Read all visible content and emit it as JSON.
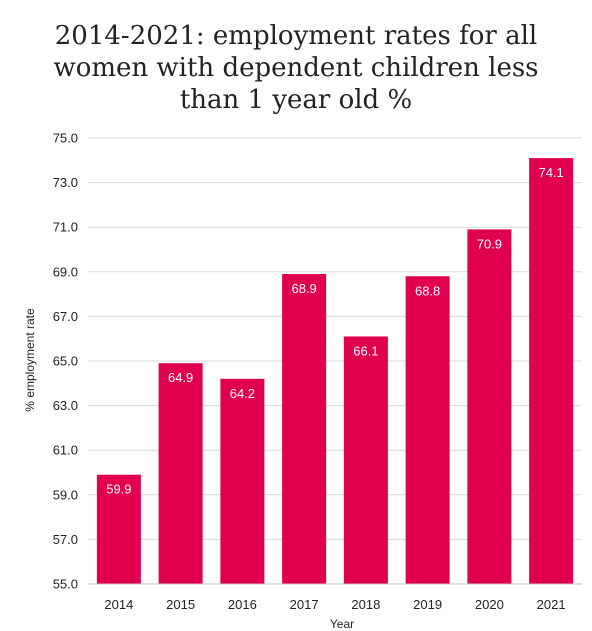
{
  "chart_data": {
    "type": "bar",
    "title": "2014-2021: employment rates for all\nwomen with dependent children less\nthan 1 year old %",
    "xlabel": "Year",
    "ylabel": "% employment rate",
    "categories": [
      "2014",
      "2015",
      "2016",
      "2017",
      "2018",
      "2019",
      "2020",
      "2021"
    ],
    "values": [
      59.9,
      64.9,
      64.2,
      68.9,
      66.1,
      68.8,
      70.9,
      74.1
    ],
    "value_labels": [
      "59.9",
      "64.9",
      "64.2",
      "68.9",
      "66.1",
      "68.8",
      "70.9",
      "74.1"
    ],
    "ylim": [
      55.0,
      75.0
    ],
    "yticks": [
      "55.0",
      "57.0",
      "59.0",
      "61.0",
      "63.0",
      "65.0",
      "67.0",
      "69.0",
      "71.0",
      "73.0",
      "75.0"
    ],
    "grid": true,
    "legend": "none",
    "bar_color": "#e0004d",
    "grid_color": "#d9d9d9"
  }
}
